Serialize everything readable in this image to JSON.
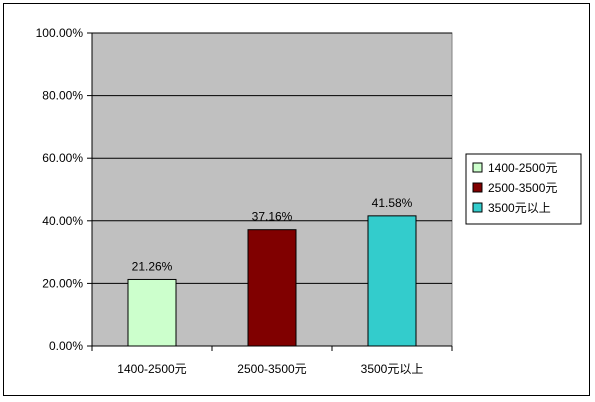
{
  "chart_data": {
    "type": "bar",
    "categories": [
      "1400-2500元",
      "2500-3500元",
      "3500元以上"
    ],
    "values": [
      21.26,
      37.16,
      41.58
    ],
    "value_labels": [
      "21.26%",
      "37.16%",
      "41.58%"
    ],
    "ylim": [
      0,
      100
    ],
    "y_ticks": [
      0,
      20,
      40,
      60,
      80,
      100
    ],
    "y_tick_labels": [
      "0.00%",
      "20.00%",
      "40.00%",
      "60.00%",
      "80.00%",
      "100.00%"
    ],
    "grid": true,
    "legend_position": "right",
    "plot_background": "#c0c0c0",
    "series_colors": [
      "#ccffcc",
      "#800000",
      "#33cccc"
    ],
    "legend": [
      "1400-2500元",
      "2500-3500元",
      "3500元以上"
    ]
  }
}
